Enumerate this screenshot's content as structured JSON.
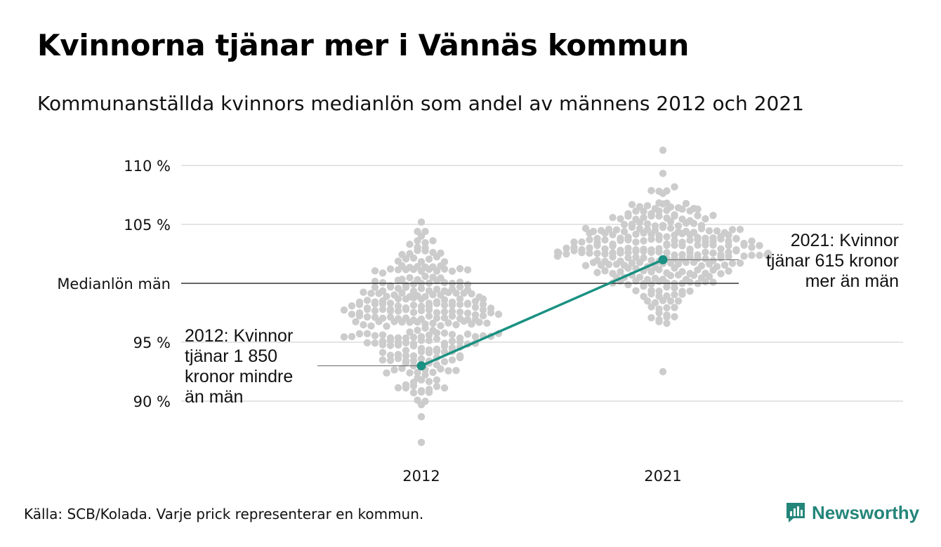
{
  "title": "Kvinnorna tjänar mer i Vännäs kommun",
  "subtitle": "Kommunanställda kvinnors medianlön som andel av männens 2012 och 2021",
  "source": "Källa: SCB/Kolada. Varje prick representerar en kommun.",
  "brand": "Newsworthy",
  "colors": {
    "dots": "#cccccc",
    "highlight": "#1a9182",
    "grid": "#e4e4e4",
    "reference": "#333333"
  },
  "chart_data": {
    "type": "scatter",
    "subtype": "beeswarm",
    "categories": [
      "2012",
      "2021"
    ],
    "y_ticks": [
      {
        "value": 90,
        "label": "90 %"
      },
      {
        "value": 95,
        "label": "95 %"
      },
      {
        "value": 100,
        "label": "Medianlön män"
      },
      {
        "value": 105,
        "label": "105 %"
      },
      {
        "value": 110,
        "label": "110 %"
      }
    ],
    "ylim": [
      86,
      112
    ],
    "reference_line": {
      "value": 100,
      "label": "Medianlön män"
    },
    "distributions": [
      {
        "category": "2012",
        "min": 86.5,
        "max": 105.2,
        "center": 97.0,
        "spread": 2.8
      },
      {
        "category": "2021",
        "min": 92.5,
        "max": 111.3,
        "center": 102.6,
        "spread": 2.4
      }
    ],
    "highlight": {
      "name": "Vännäs",
      "points": [
        {
          "x": "2012",
          "y": 93.0
        },
        {
          "x": "2021",
          "y": 102.0
        }
      ]
    },
    "annotations": [
      {
        "x": "2012",
        "y": 93.0,
        "lines": [
          "2012: Kvinnor",
          "tjänar 1 850",
          "kronor mindre",
          "än män"
        ]
      },
      {
        "x": "2021",
        "y": 102.0,
        "lines": [
          "2021: Kvinnor",
          "tjänar 615 kronor",
          "mer än män"
        ]
      }
    ]
  }
}
